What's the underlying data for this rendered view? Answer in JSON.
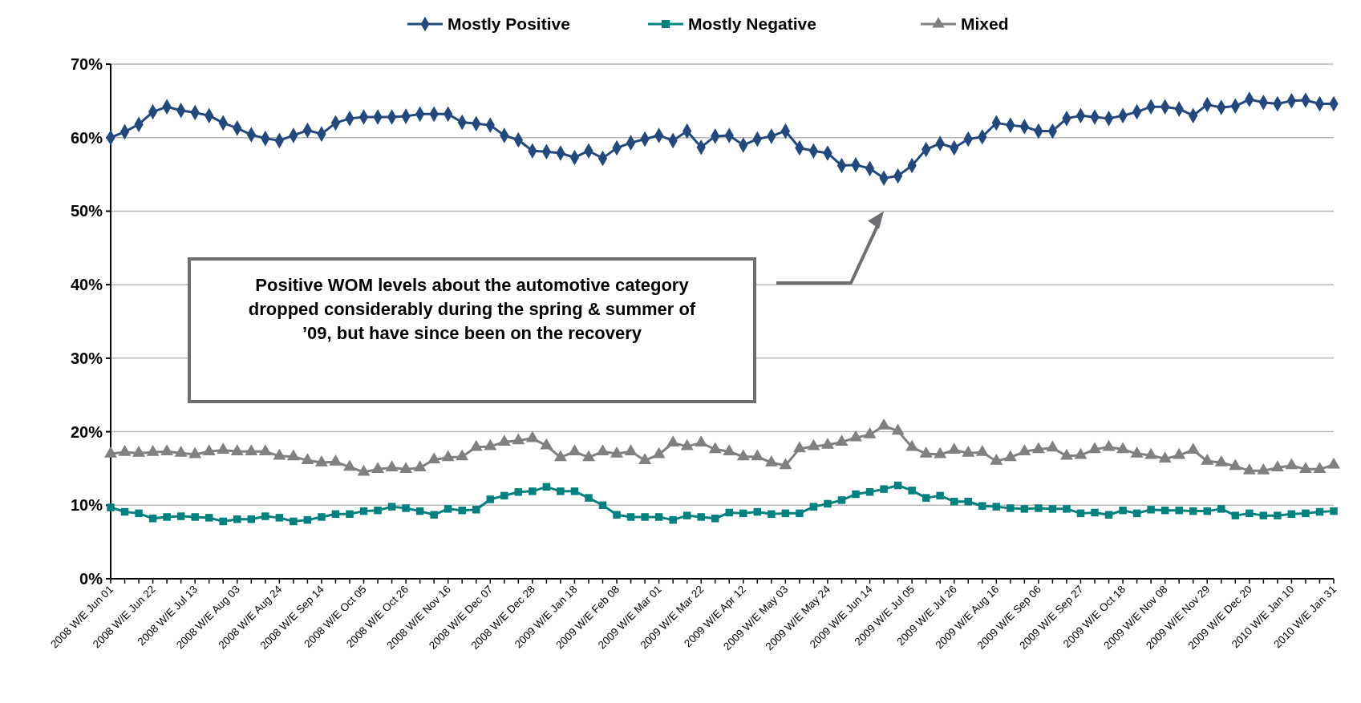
{
  "chart_data": {
    "type": "line",
    "categories": [
      "2008 W/E Jun 01",
      null,
      null,
      "2008 W/E Jun 22",
      null,
      null,
      "2008 W/E Jul 13",
      null,
      null,
      "2008 W/E Aug 03",
      null,
      null,
      "2008 W/E Aug 24",
      null,
      null,
      "2008 W/E Sep 14",
      null,
      null,
      "2008 W/E Oct 05",
      null,
      null,
      "2008 W/E Oct 26",
      null,
      null,
      "2008 W/E Nov 16",
      null,
      null,
      "2008 W/E Dec 07",
      null,
      null,
      "2008 W/E Dec 28",
      null,
      null,
      "2009 W/E Jan 18",
      null,
      null,
      "2009 W/E Feb 08",
      null,
      null,
      "2009 W/E Mar 01",
      null,
      null,
      "2009 W/E Mar 22",
      null,
      null,
      "2009 W/E Apr 12",
      null,
      null,
      "2009 W/E May 03",
      null,
      null,
      "2009 W/E May 24",
      null,
      null,
      "2009 W/E Jun 14",
      null,
      null,
      "2009 W/E Jul 05",
      null,
      null,
      "2009 W/E Jul 26",
      null,
      null,
      "2009 W/E Aug 16",
      null,
      null,
      "2009 W/E Sep 06",
      null,
      null,
      "2009 W/E Sep 27",
      null,
      null,
      "2009 W/E Oct 18",
      null,
      null,
      "2009 W/E Nov 08",
      null,
      null,
      "2009 W/E Nov 29",
      null,
      null,
      "2009 W/E Dec 20",
      null,
      null,
      "2010 W/E Jan 10",
      null,
      null,
      "2010 W/E Jan 31"
    ],
    "series": [
      {
        "name": "Mostly Positive",
        "color": "#23497c",
        "marker": "diamond",
        "values": [
          60.0,
          60.8,
          61.8,
          63.5,
          64.2,
          63.7,
          63.4,
          63.0,
          62.0,
          61.3,
          60.4,
          59.9,
          59.6,
          60.3,
          61.0,
          60.5,
          62.0,
          62.6,
          62.8,
          62.8,
          62.8,
          62.9,
          63.2,
          63.2,
          63.2,
          62.1,
          61.9,
          61.7,
          60.3,
          59.7,
          58.2,
          58.1,
          57.9,
          57.3,
          58.2,
          57.2,
          58.6,
          59.3,
          59.8,
          60.3,
          59.6,
          60.9,
          58.7,
          60.2,
          60.3,
          59.0,
          59.8,
          60.2,
          60.9,
          58.6,
          58.2,
          57.9,
          56.2,
          56.3,
          55.8,
          54.5,
          54.8,
          56.2,
          58.4,
          59.2,
          58.6,
          59.8,
          60.1,
          62.0,
          61.7,
          61.5,
          60.9,
          60.9,
          62.6,
          63.0,
          62.8,
          62.6,
          63.0,
          63.5,
          64.2,
          64.2,
          63.9,
          63.0,
          64.5,
          64.1,
          64.3,
          65.2,
          64.8,
          64.6,
          65.0,
          65.1,
          64.6,
          64.6
        ]
      },
      {
        "name": "Mostly Negative",
        "color": "#00807e",
        "marker": "square",
        "values": [
          9.7,
          9.1,
          8.9,
          8.2,
          8.4,
          8.5,
          8.4,
          8.3,
          7.8,
          8.1,
          8.1,
          8.5,
          8.3,
          7.8,
          8.0,
          8.4,
          8.8,
          8.8,
          9.2,
          9.3,
          9.8,
          9.6,
          9.2,
          8.7,
          9.5,
          9.3,
          9.4,
          10.8,
          11.3,
          11.8,
          11.9,
          12.5,
          11.9,
          11.9,
          11.0,
          10.0,
          8.7,
          8.4,
          8.4,
          8.4,
          8.0,
          8.6,
          8.4,
          8.2,
          9.0,
          8.9,
          9.1,
          8.8,
          8.9,
          8.9,
          9.8,
          10.2,
          10.7,
          11.5,
          11.8,
          12.2,
          12.7,
          12.0,
          11.0,
          11.3,
          10.5,
          10.5,
          9.9,
          9.8,
          9.6,
          9.5,
          9.6,
          9.5,
          9.5,
          8.9,
          9.0,
          8.7,
          9.3,
          8.9,
          9.4,
          9.3,
          9.3,
          9.2,
          9.2,
          9.5,
          8.6,
          8.9,
          8.6,
          8.6,
          8.8,
          8.9,
          9.1,
          9.2
        ]
      },
      {
        "name": "Mixed",
        "color": "#808080",
        "marker": "triangle",
        "values": [
          17.0,
          17.2,
          17.1,
          17.2,
          17.3,
          17.1,
          16.9,
          17.3,
          17.5,
          17.3,
          17.3,
          17.3,
          16.7,
          16.6,
          16.1,
          15.8,
          15.9,
          15.2,
          14.5,
          14.9,
          15.1,
          14.9,
          15.1,
          16.2,
          16.5,
          16.6,
          17.9,
          18.0,
          18.6,
          18.8,
          19.1,
          18.1,
          16.5,
          17.3,
          16.5,
          17.3,
          17.0,
          17.3,
          16.1,
          16.9,
          18.5,
          18.0,
          18.5,
          17.6,
          17.3,
          16.6,
          16.6,
          15.8,
          15.4,
          17.7,
          18.0,
          18.2,
          18.6,
          19.2,
          19.6,
          20.8,
          20.1,
          17.9,
          17.0,
          16.9,
          17.5,
          17.1,
          17.2,
          16.0,
          16.5,
          17.3,
          17.6,
          17.8,
          16.7,
          16.8,
          17.6,
          17.9,
          17.6,
          17.0,
          16.8,
          16.3,
          16.8,
          17.5,
          16.0,
          15.8,
          15.3,
          14.7,
          14.7,
          15.1,
          15.4,
          14.9,
          14.9,
          15.5
        ]
      }
    ],
    "ylim": [
      0,
      70
    ],
    "yticks": [
      {
        "value": 0,
        "label": "0%"
      },
      {
        "value": 10,
        "label": "10%"
      },
      {
        "value": 20,
        "label": "20%"
      },
      {
        "value": 30,
        "label": "30%"
      },
      {
        "value": 40,
        "label": "40%"
      },
      {
        "value": 50,
        "label": "50%"
      },
      {
        "value": 60,
        "label": "60%"
      },
      {
        "value": 70,
        "label": "70%"
      }
    ],
    "grid": "y",
    "legend": "top",
    "line_style": "solid",
    "annotations": [
      "Positive WOM levels about the automotive category dropped considerably during the spring & summer of ’09, but have since been on the recovery"
    ]
  }
}
